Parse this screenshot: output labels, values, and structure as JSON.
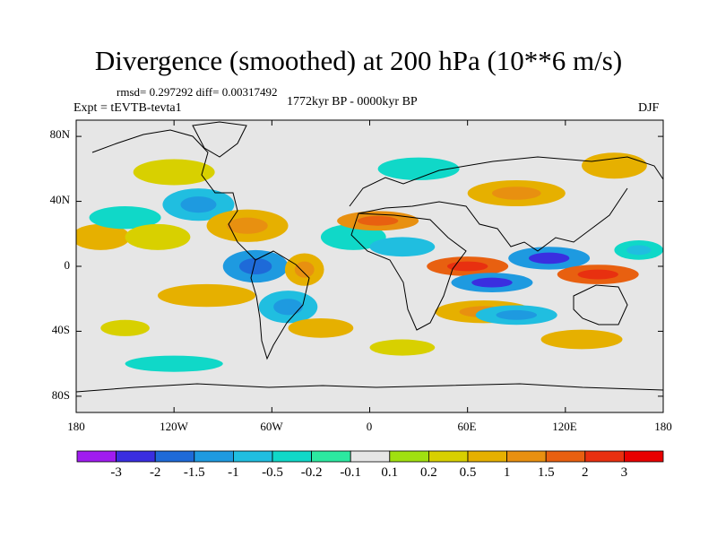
{
  "title": "Divergence (smoothed) at 200 hPa (10**6 m/s)",
  "stats": "rmsd= 0.297292 diff= 0.00317492",
  "period": "1772kyr BP - 0000kyr BP",
  "experiment": "Expt = tEVTB-tevta1",
  "season": "DJF",
  "lat_labels": [
    "80N",
    "40N",
    "0",
    "40S",
    "80S"
  ],
  "lon_labels": [
    "180",
    "120W",
    "60W",
    "0",
    "60E",
    "120E",
    "180"
  ],
  "colorbar": {
    "labels": [
      "-3",
      "-2",
      "-1.5",
      "-1",
      "-0.5",
      "-0.2",
      "-0.1",
      "0.1",
      "0.2",
      "0.5",
      "1",
      "1.5",
      "2",
      "3"
    ],
    "colors": [
      "#a01cf0",
      "#3a2ee0",
      "#1e6ad8",
      "#1e9ae0",
      "#20bee0",
      "#10d8c8",
      "#2ce8a0",
      "#e6e6e6",
      "#a0e010",
      "#d8d000",
      "#e6b000",
      "#e89010",
      "#e86010",
      "#e83010",
      "#e80000"
    ]
  },
  "chart_data": {
    "type": "heatmap",
    "title": "Divergence (smoothed) at 200 hPa (10**6 m/s)",
    "variable": "Divergence (smoothed) at 200 hPa",
    "units": "10**6 m/s",
    "x_range": [
      -180,
      180
    ],
    "y_range": [
      -90,
      90
    ],
    "levels": [
      -3,
      -2,
      -1.5,
      -1,
      -0.5,
      -0.2,
      -0.1,
      0.1,
      0.2,
      0.5,
      1,
      1.5,
      2,
      3
    ],
    "blobs": [
      {
        "lon": -165,
        "lat": 18,
        "rlon": 18,
        "rlat": 8,
        "v": 0.6
      },
      {
        "lon": -150,
        "lat": 30,
        "rlon": 22,
        "rlat": 7,
        "v": -0.35
      },
      {
        "lon": -130,
        "lat": 18,
        "rlon": 20,
        "rlat": 8,
        "v": 0.4
      },
      {
        "lon": -105,
        "lat": 38,
        "rlon": 22,
        "rlat": 10,
        "v": -0.7
      },
      {
        "lon": -75,
        "lat": 25,
        "rlon": 25,
        "rlat": 10,
        "v": 0.9
      },
      {
        "lon": -100,
        "lat": -18,
        "rlon": 30,
        "rlat": 7,
        "v": 0.5
      },
      {
        "lon": -70,
        "lat": 0,
        "rlon": 20,
        "rlat": 10,
        "v": -1.2
      },
      {
        "lon": -40,
        "lat": -2,
        "rlon": 12,
        "rlat": 10,
        "v": 0.8
      },
      {
        "lon": -50,
        "lat": -25,
        "rlon": 18,
        "rlat": 10,
        "v": -0.9
      },
      {
        "lon": -30,
        "lat": -38,
        "rlon": 20,
        "rlat": 6,
        "v": 0.5
      },
      {
        "lon": -10,
        "lat": 18,
        "rlon": 20,
        "rlat": 8,
        "v": -0.4
      },
      {
        "lon": 5,
        "lat": 28,
        "rlon": 25,
        "rlat": 6,
        "v": 1.2
      },
      {
        "lon": 20,
        "lat": 12,
        "rlon": 20,
        "rlat": 6,
        "v": -0.6
      },
      {
        "lon": 60,
        "lat": 0,
        "rlon": 25,
        "rlat": 6,
        "v": 1.6
      },
      {
        "lon": 75,
        "lat": -10,
        "rlon": 25,
        "rlat": 6,
        "v": -1.5
      },
      {
        "lon": 70,
        "lat": -28,
        "rlon": 30,
        "rlat": 7,
        "v": 0.9
      },
      {
        "lon": 90,
        "lat": -30,
        "rlon": 25,
        "rlat": 6,
        "v": -0.8
      },
      {
        "lon": 110,
        "lat": 5,
        "rlon": 25,
        "rlat": 7,
        "v": -1.4
      },
      {
        "lon": 140,
        "lat": -5,
        "rlon": 25,
        "rlat": 6,
        "v": 1.7
      },
      {
        "lon": 165,
        "lat": 10,
        "rlon": 15,
        "rlat": 6,
        "v": -0.5
      },
      {
        "lon": 90,
        "lat": 45,
        "rlon": 30,
        "rlat": 8,
        "v": 0.7
      },
      {
        "lon": 30,
        "lat": 60,
        "rlon": 25,
        "rlat": 7,
        "v": -0.4
      },
      {
        "lon": 150,
        "lat": 62,
        "rlon": 20,
        "rlat": 8,
        "v": 0.5
      },
      {
        "lon": -120,
        "lat": 58,
        "rlon": 25,
        "rlat": 8,
        "v": 0.3
      },
      {
        "lon": -120,
        "lat": -60,
        "rlon": 30,
        "rlat": 5,
        "v": -0.3
      },
      {
        "lon": 20,
        "lat": -50,
        "rlon": 20,
        "rlat": 5,
        "v": 0.3
      },
      {
        "lon": 130,
        "lat": -45,
        "rlon": 25,
        "rlat": 6,
        "v": 0.5
      },
      {
        "lon": -150,
        "lat": -38,
        "rlon": 15,
        "rlat": 5,
        "v": 0.3
      }
    ]
  }
}
